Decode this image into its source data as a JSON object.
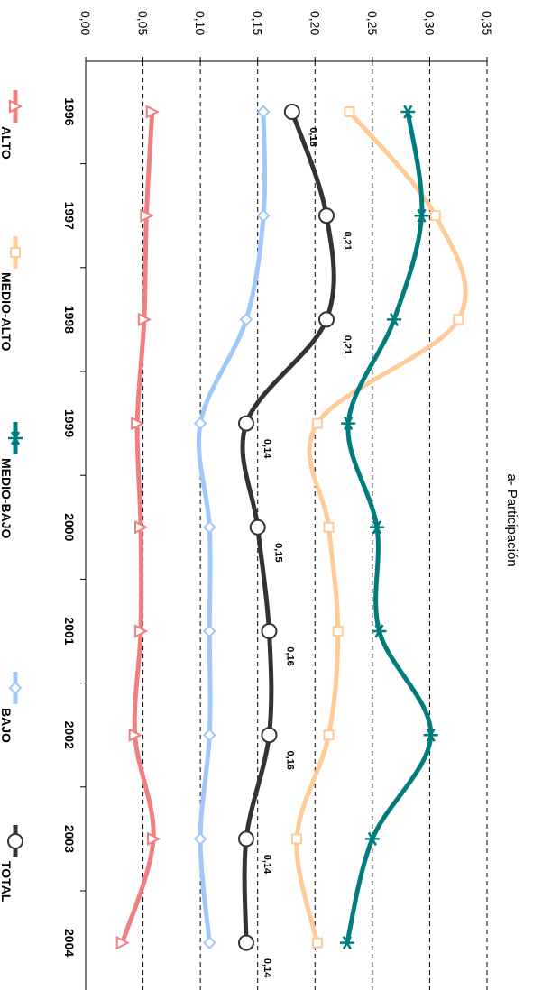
{
  "chart_data": {
    "type": "line",
    "orientation": "rotated-90-clockwise",
    "title": "a- Participación",
    "categories": [
      "1996",
      "1997",
      "1998",
      "1999",
      "2000",
      "2001",
      "2002",
      "2003",
      "2004"
    ],
    "ylim": [
      0,
      0.35
    ],
    "yticks": [
      "0,00",
      "0,05",
      "0,10",
      "0,15",
      "0,20",
      "0,25",
      "0,30",
      "0,35"
    ],
    "grid": true,
    "legend_position": "bottom",
    "series": [
      {
        "name": "ALTO",
        "color": "#F08080",
        "marker": "triangle",
        "values": [
          0.058,
          0.053,
          0.051,
          0.045,
          0.048,
          0.048,
          0.043,
          0.059,
          0.032
        ]
      },
      {
        "name": "MEDIO-ALTO",
        "color": "#FFCC99",
        "marker": "square",
        "values": [
          0.23,
          0.305,
          0.325,
          0.202,
          0.212,
          0.22,
          0.212,
          0.184,
          0.202
        ]
      },
      {
        "name": "MEDIO-BAJO",
        "color": "#007C7C",
        "marker": "star",
        "values": [
          0.281,
          0.293,
          0.269,
          0.229,
          0.254,
          0.256,
          0.301,
          0.25,
          0.228
        ]
      },
      {
        "name": "BAJO",
        "color": "#A0C8F8",
        "marker": "diamond",
        "values": [
          0.155,
          0.155,
          0.14,
          0.1,
          0.108,
          0.108,
          0.108,
          0.1,
          0.108
        ]
      },
      {
        "name": "TOTAL",
        "color": "#333333",
        "marker": "circle",
        "values": [
          0.18,
          0.21,
          0.21,
          0.14,
          0.15,
          0.16,
          0.16,
          0.14,
          0.14
        ],
        "labels": [
          "0,18",
          "0,21",
          "0,21",
          "0,14",
          "0,15",
          "0,16",
          "0,16",
          "0,14",
          "0,14"
        ]
      }
    ]
  }
}
